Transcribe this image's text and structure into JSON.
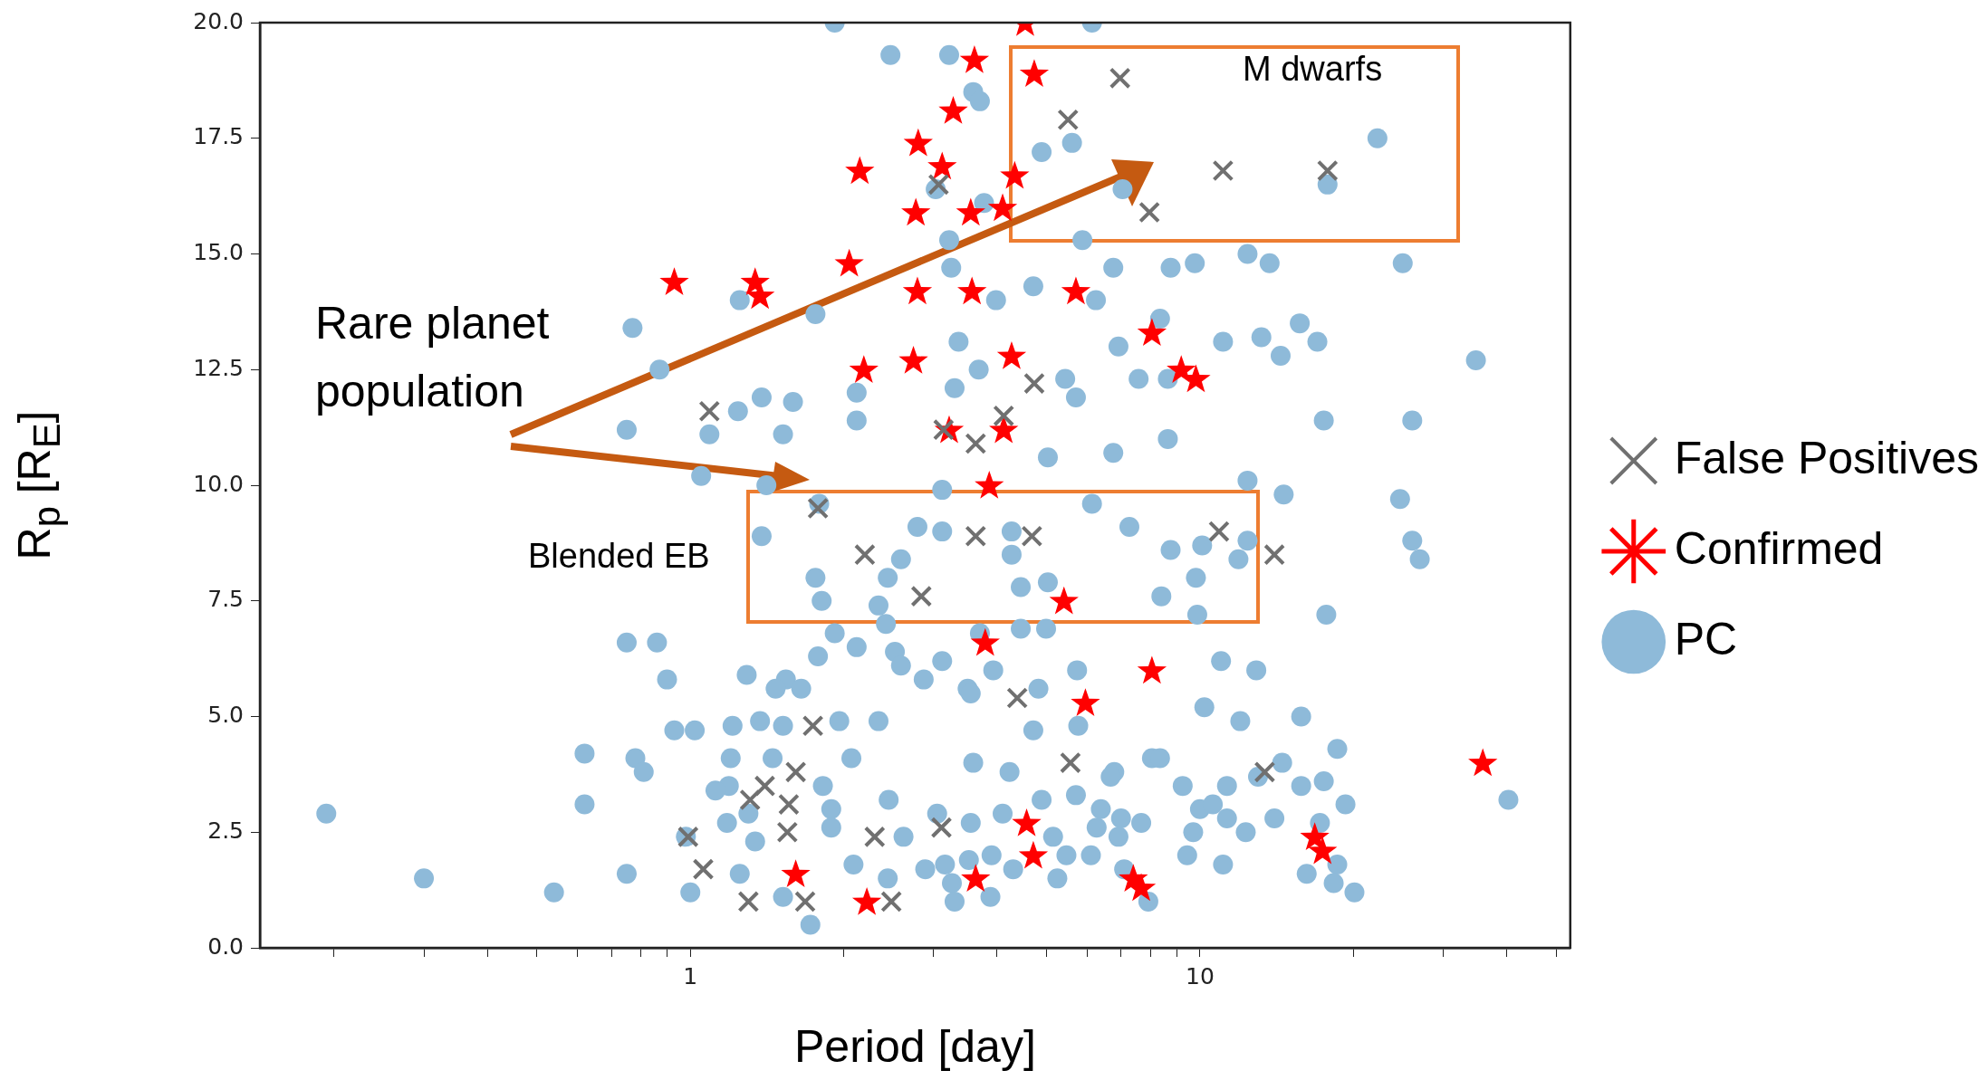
{
  "chart_data": {
    "type": "scatter",
    "xlabel": "Period [day]",
    "ylabel": "R$_{p}$ [R$_{E}$]",
    "log": "x",
    "xlim": [
      0.143,
      53.3
    ],
    "ylim": [
      0,
      20
    ],
    "xticks": [
      {
        "value": 0.2,
        "label": null
      },
      {
        "value": 0.3,
        "label": null
      },
      {
        "value": 0.4,
        "label": null
      },
      {
        "value": 0.5,
        "label": null
      },
      {
        "value": 0.6,
        "label": null
      },
      {
        "value": 0.7,
        "label": null
      },
      {
        "value": 0.8,
        "label": null
      },
      {
        "value": 0.9,
        "label": null
      },
      1,
      {
        "value": 2,
        "label": null
      },
      {
        "value": 3,
        "label": null
      },
      {
        "value": 4,
        "label": null
      },
      {
        "value": 5,
        "label": null
      },
      {
        "value": 6,
        "label": null
      },
      {
        "value": 7,
        "label": null
      },
      {
        "value": 8,
        "label": null
      },
      {
        "value": 9,
        "label": null
      },
      10,
      {
        "value": 20,
        "label": null
      },
      {
        "value": 30,
        "label": null
      },
      {
        "value": 40,
        "label": null
      },
      {
        "value": 50,
        "label": null
      }
    ],
    "yticks": [
      {
        "value": 0,
        "label": "0.0"
      },
      2.5,
      {
        "value": 5,
        "label": "5.0"
      },
      7.5,
      {
        "value": 10,
        "label": "10.0"
      },
      12.5,
      {
        "value": 15,
        "label": "15.0"
      },
      17.5,
      {
        "value": 20,
        "label": "20.0"
      }
    ],
    "grid": false,
    "legend": "right",
    "annotations": [
      "Rare planet population",
      "M dwarfs",
      "Blended EB"
    ],
    "series": [
      {
        "name": "PC",
        "color": "#8ebad9",
        "marker": "circle",
        "x": [
          1.92,
          2.47,
          3.22,
          3.59,
          3.7,
          6.14,
          22.3,
          5.61,
          4.89,
          17.8,
          7.05,
          3.77,
          3.03,
          5.88,
          3.22,
          6.76,
          8.76,
          9.77,
          12.4,
          13.7,
          25.0,
          3.25,
          4.71,
          6.25,
          3.98,
          1.25,
          1.76,
          0.77,
          8.35,
          3.36,
          6.92,
          11.1,
          13.2,
          15.7,
          17.0,
          14.4,
          34.8,
          0.87,
          3.68,
          5.44,
          7.58,
          8.65,
          1.38,
          1.59,
          2.12,
          3.3,
          5.71,
          17.5,
          26.1,
          2.12,
          1.24,
          1.52,
          0.75,
          1.09,
          8.65,
          6.76,
          5.03,
          1.05,
          1.41,
          12.4,
          14.6,
          24.7,
          3.12,
          6.14,
          1.79,
          2.79,
          3.12,
          1.38,
          4.27,
          7.27,
          12.4,
          26.1,
          27.0,
          4.27,
          2.59,
          10.1,
          8.76,
          11.9,
          9.82,
          1.76,
          2.44,
          5.03,
          1.81,
          2.34,
          4.45,
          8.4,
          9.88,
          17.7,
          2.42,
          1.92,
          2.52,
          0.75,
          0.86,
          2.12,
          3.7,
          4.45,
          4.99,
          1.78,
          2.59,
          3.12,
          3.93,
          5.74,
          11.0,
          12.9,
          1.29,
          1.54,
          2.87,
          3.5,
          4.82,
          0.9,
          1.47,
          1.65,
          3.55,
          10.2,
          15.8,
          0.93,
          1.02,
          1.21,
          1.96,
          1.37,
          1.52,
          2.34,
          5.77,
          4.71,
          12.0,
          0.62,
          0.78,
          0.81,
          1.2,
          1.45,
          2.07,
          3.59,
          4.23,
          6.79,
          8.05,
          8.35,
          14.5,
          18.6,
          40.3,
          1.19,
          1.82,
          4.89,
          6.68,
          9.25,
          11.3,
          13.0,
          15.8,
          17.5,
          0.62,
          1.12,
          1.3,
          1.89,
          2.45,
          3.05,
          4.1,
          5.71,
          6.39,
          7.0,
          10.0,
          10.6,
          11.3,
          14.0,
          19.3,
          0.193,
          0.98,
          1.18,
          1.34,
          1.89,
          2.62,
          3.55,
          5.15,
          6.27,
          6.92,
          7.67,
          9.7,
          12.3,
          17.2,
          2.09,
          2.89,
          3.16,
          3.52,
          3.9,
          4.3,
          5.47,
          6.11,
          9.44,
          11.1,
          16.2,
          18.6,
          0.3,
          0.75,
          1.25,
          2.44,
          3.26,
          5.25,
          7.1,
          18.3,
          20.1,
          0.54,
          1.0,
          1.52,
          3.3,
          3.88,
          7.92,
          1.72
        ],
        "values": [
          20.0,
          19.3,
          19.3,
          18.5,
          18.3,
          20.0,
          17.5,
          17.4,
          17.2,
          16.5,
          16.4,
          16.1,
          16.4,
          15.3,
          15.3,
          14.7,
          14.7,
          14.8,
          15.0,
          14.8,
          14.8,
          14.7,
          14.3,
          14.0,
          14.0,
          14.0,
          13.7,
          13.4,
          13.6,
          13.1,
          13.0,
          13.1,
          13.2,
          13.5,
          13.1,
          12.8,
          12.7,
          12.5,
          12.5,
          12.3,
          12.3,
          12.3,
          11.9,
          11.8,
          12.0,
          12.1,
          11.9,
          11.4,
          11.4,
          11.4,
          11.6,
          11.1,
          11.2,
          11.1,
          11.0,
          10.7,
          10.6,
          10.2,
          10.0,
          10.1,
          9.8,
          9.7,
          9.9,
          9.6,
          9.6,
          9.1,
          9.0,
          8.9,
          9.0,
          9.1,
          8.8,
          8.8,
          8.4,
          8.5,
          8.4,
          8.7,
          8.6,
          8.4,
          8.0,
          8.0,
          8.0,
          7.9,
          7.5,
          7.4,
          7.8,
          7.6,
          7.2,
          7.2,
          7.0,
          6.8,
          6.4,
          6.6,
          6.6,
          6.5,
          6.8,
          6.9,
          6.9,
          6.3,
          6.1,
          6.2,
          6.0,
          6.0,
          6.2,
          6.0,
          5.9,
          5.8,
          5.8,
          5.6,
          5.6,
          5.8,
          5.6,
          5.6,
          5.5,
          5.2,
          5.0,
          4.7,
          4.7,
          4.8,
          4.9,
          4.9,
          4.8,
          4.9,
          4.8,
          4.7,
          4.9,
          4.2,
          4.1,
          3.8,
          4.1,
          4.1,
          4.1,
          4.0,
          3.8,
          3.8,
          4.1,
          4.1,
          4.0,
          4.3,
          3.2,
          3.5,
          3.5,
          3.2,
          3.7,
          3.5,
          3.5,
          3.7,
          3.5,
          3.6,
          3.1,
          3.4,
          2.9,
          3.0,
          3.2,
          2.9,
          2.9,
          3.3,
          3.0,
          2.8,
          3.0,
          3.1,
          2.8,
          2.8,
          3.1,
          2.9,
          2.4,
          2.7,
          2.3,
          2.6,
          2.4,
          2.7,
          2.4,
          2.6,
          2.4,
          2.7,
          2.5,
          2.5,
          2.7,
          1.8,
          1.7,
          1.8,
          1.9,
          2.0,
          1.7,
          2.0,
          2.0,
          2.0,
          1.8,
          1.6,
          1.8,
          1.5,
          1.6,
          1.6,
          1.5,
          1.4,
          1.5,
          1.7,
          1.4,
          1.2,
          1.2,
          1.2,
          1.1,
          1.0,
          1.1,
          1.0,
          0.5
        ]
      },
      {
        "name": "Confirmed",
        "color": "#ff0000",
        "marker": "star",
        "x": [
          4.54,
          3.61,
          4.73,
          3.28,
          2.8,
          3.12,
          2.15,
          4.33,
          4.1,
          3.55,
          2.77,
          0.93,
          1.34,
          1.37,
          2.05,
          2.79,
          3.57,
          5.71,
          2.19,
          2.74,
          4.27,
          8.05,
          9.19,
          9.82,
          3.22,
          4.12,
          3.86,
          5.41,
          3.79,
          8.05,
          5.96,
          4.57,
          4.71,
          16.8,
          17.4,
          35.9,
          1.61,
          2.22,
          3.63,
          7.4,
          7.67
        ],
        "values": [
          20.0,
          19.2,
          18.9,
          18.1,
          17.4,
          16.9,
          16.8,
          16.7,
          16.0,
          15.9,
          15.9,
          14.4,
          14.4,
          14.1,
          14.8,
          14.2,
          14.2,
          14.2,
          12.5,
          12.7,
          12.8,
          13.3,
          12.5,
          12.3,
          11.2,
          11.2,
          10.0,
          7.5,
          6.6,
          6.0,
          5.3,
          2.7,
          2.0,
          2.4,
          2.1,
          4.0,
          1.6,
          1.0,
          1.5,
          1.5,
          1.3
        ]
      },
      {
        "name": "False Positives",
        "color": "#707070",
        "marker": "cross",
        "x": [
          6.97,
          5.51,
          11.1,
          17.8,
          7.96,
          3.07,
          4.73,
          1.09,
          3.14,
          3.63,
          4.12,
          1.78,
          2.2,
          2.84,
          3.63,
          4.68,
          10.9,
          14.0,
          4.38,
          5.57,
          13.4,
          1.74,
          1.61,
          1.4,
          1.31,
          1.56,
          1.55,
          0.99,
          1.06,
          1.3,
          1.68,
          2.3,
          2.48,
          3.11
        ],
        "values": [
          18.8,
          17.9,
          16.8,
          16.8,
          15.9,
          16.5,
          12.2,
          11.6,
          11.2,
          10.9,
          11.5,
          9.5,
          8.5,
          7.6,
          8.9,
          8.9,
          9.0,
          8.5,
          5.4,
          4.0,
          3.8,
          4.8,
          3.8,
          3.5,
          3.2,
          3.1,
          2.5,
          2.4,
          1.7,
          1.0,
          1.0,
          2.4,
          1.0,
          2.6
        ]
      }
    ]
  }
}
